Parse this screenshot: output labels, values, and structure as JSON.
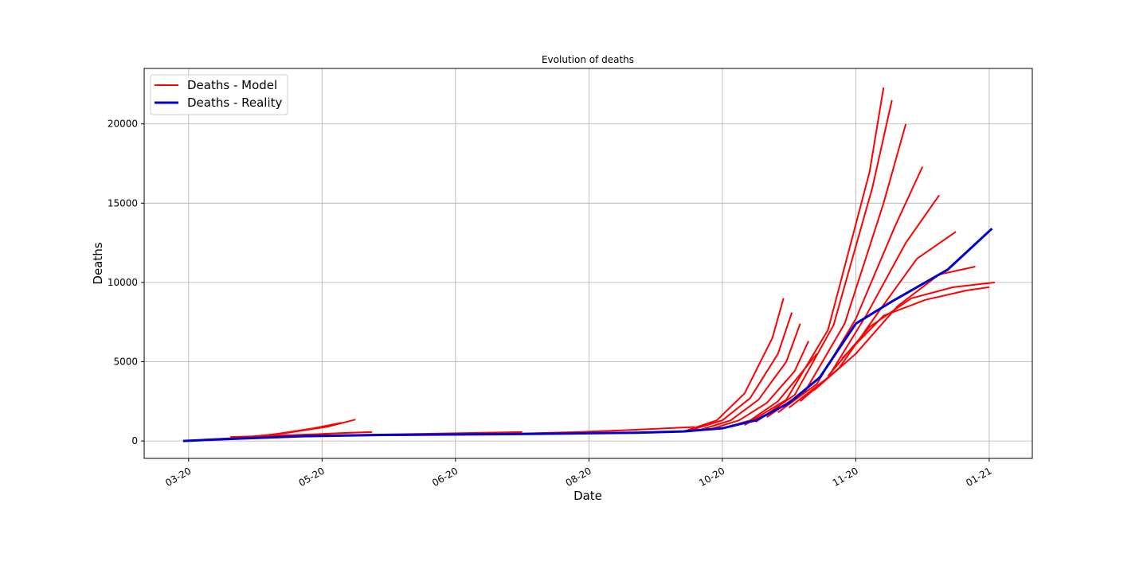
{
  "chart_data": {
    "type": "line",
    "title": "Evolution of deaths",
    "x_label": "Date",
    "y_label": "Deaths",
    "xlim": [
      -16,
      303.5
    ],
    "ylim": [
      -1100,
      23500
    ],
    "xticks": [
      {
        "value": 0,
        "label": "03-20"
      },
      {
        "value": 48,
        "label": "05-20"
      },
      {
        "value": 96,
        "label": "06-20"
      },
      {
        "value": 144,
        "label": "08-20"
      },
      {
        "value": 192,
        "label": "10-20"
      },
      {
        "value": 240,
        "label": "11-20"
      },
      {
        "value": 288,
        "label": "01-21"
      }
    ],
    "yticks": [
      0,
      5000,
      10000,
      15000,
      20000
    ],
    "grid": true,
    "legend": "upper left",
    "series": [
      {
        "name": "Deaths - Model",
        "color": "#ff0000",
        "runs": [
          {
            "x": [
              0,
              15,
              30,
              45,
              55
            ],
            "values": [
              30,
              150,
              400,
              800,
              1150
            ]
          },
          {
            "x": [
              5,
              20,
              35,
              50,
              60
            ],
            "values": [
              80,
              220,
              500,
              900,
              1350
            ]
          },
          {
            "x": [
              15,
              30,
              45,
              55,
              66
            ],
            "values": [
              250,
              330,
              420,
              500,
              560
            ]
          },
          {
            "x": [
              40,
              60,
              80,
              100,
              120
            ],
            "values": [
              330,
              380,
              440,
              500,
              560
            ]
          },
          {
            "x": [
              100,
              120,
              140,
              160,
              182
            ],
            "values": [
              420,
              470,
              560,
              700,
              880
            ]
          },
          {
            "x": [
              178,
              190,
              200,
              210,
              214
            ],
            "values": [
              600,
              1300,
              3000,
              6500,
              9000
            ]
          },
          {
            "x": [
              180,
              192,
              202,
              212,
              217
            ],
            "values": [
              650,
              1300,
              2700,
              5500,
              8100
            ]
          },
          {
            "x": [
              184,
              195,
              205,
              215,
              220
            ],
            "values": [
              700,
              1300,
              2600,
              5000,
              7400
            ]
          },
          {
            "x": [
              188,
              198,
              208,
              218,
              223
            ],
            "values": [
              760,
              1300,
              2400,
              4400,
              6300
            ]
          },
          {
            "x": [
              192,
              202,
              212,
              220,
              226
            ],
            "values": [
              800,
              1300,
              2500,
              4200,
              5500
            ]
          },
          {
            "x": [
              200,
              215,
              230,
              245,
              250
            ],
            "values": [
              1000,
              2600,
              7000,
              17000,
              22300
            ]
          },
          {
            "x": [
              204,
              218,
              232,
              246,
              253
            ],
            "values": [
              1200,
              2900,
              7300,
              16000,
              21500
            ]
          },
          {
            "x": [
              208,
              222,
              236,
              250,
              258
            ],
            "values": [
              1500,
              3200,
              7400,
              15000,
              20000
            ]
          },
          {
            "x": [
              212,
              226,
              240,
              254,
              264
            ],
            "values": [
              1800,
              3600,
              7700,
              13500,
              17300
            ]
          },
          {
            "x": [
              216,
              230,
              244,
              258,
              270
            ],
            "values": [
              2100,
              4000,
              8000,
              12500,
              15500
            ]
          },
          {
            "x": [
              220,
              234,
              248,
              262,
              276
            ],
            "values": [
              2500,
              4600,
              8100,
              11500,
              13200
            ]
          },
          {
            "x": [
              225,
              240,
              255,
              270,
              283
            ],
            "values": [
              3200,
              5500,
              8500,
              10500,
              11000
            ]
          },
          {
            "x": [
              230,
              245,
              260,
              275,
              290
            ],
            "values": [
              4100,
              7200,
              9000,
              9700,
              10000
            ]
          },
          {
            "x": [
              235,
              250,
              265,
              280,
              288
            ],
            "values": [
              5200,
              7900,
              8900,
              9500,
              9700
            ]
          }
        ]
      },
      {
        "name": "Deaths - Reality",
        "color": "#0000cc",
        "x": [
          -2,
          18,
          41,
          70,
          104,
          133,
          161,
          178,
          192,
          204,
          216,
          227,
          240,
          253,
          273,
          289
        ],
        "values": [
          0,
          150,
          300,
          380,
          420,
          460,
          520,
          600,
          800,
          1300,
          2400,
          4000,
          7400,
          8800,
          10800,
          13400
        ]
      }
    ]
  }
}
